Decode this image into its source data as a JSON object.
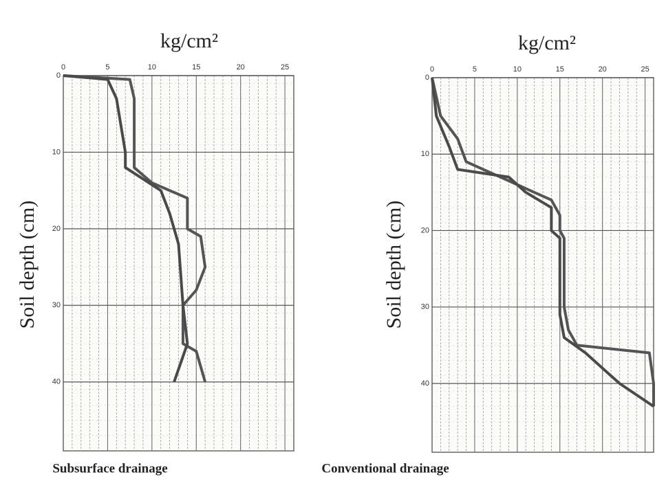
{
  "chart_data": [
    {
      "type": "line",
      "title": "kg/cm²",
      "y_label": "Soil depth (cm)",
      "caption": "Subsurface drainage",
      "xlim": [
        0,
        26
      ],
      "ylim": [
        0,
        49
      ],
      "y_inverted": true,
      "xticks": [
        0,
        5,
        10,
        15,
        20,
        25
      ],
      "yticks": [
        0,
        10,
        20,
        30,
        40
      ],
      "grid": true,
      "series": [
        {
          "color": "#555555",
          "x": [
            0,
            7.5,
            8,
            8,
            10,
            14,
            14,
            15.5,
            16,
            15,
            13.5,
            13.5,
            15,
            16
          ],
          "y": [
            0,
            0.5,
            3,
            12,
            14,
            16,
            20,
            21,
            25,
            28,
            30,
            35,
            36,
            40
          ]
        },
        {
          "color": "#4a4a4a",
          "x": [
            0,
            5,
            6,
            7,
            7,
            11,
            12,
            13,
            13.5,
            14,
            12.5
          ],
          "y": [
            0,
            0.5,
            3,
            10,
            12,
            15,
            18,
            22,
            30,
            35,
            40
          ]
        }
      ]
    },
    {
      "type": "line",
      "title": "kg/cm²",
      "y_label": "Soil depth (cm)",
      "caption": "Conventional drainage",
      "xlim": [
        0,
        26
      ],
      "ylim": [
        0,
        49
      ],
      "y_inverted": true,
      "xticks": [
        0,
        5,
        10,
        15,
        20,
        25
      ],
      "yticks": [
        0,
        10,
        20,
        30,
        40
      ],
      "grid": true,
      "series": [
        {
          "color": "#555555",
          "x": [
            0,
            1,
            3,
            4,
            8,
            10,
            14,
            15,
            15,
            15.5,
            15.5,
            16,
            17,
            25.5,
            26,
            26
          ],
          "y": [
            0,
            5,
            8,
            11,
            13,
            14,
            16,
            18,
            20,
            21,
            30,
            33,
            35,
            36,
            40,
            43
          ]
        },
        {
          "color": "#4a4a4a",
          "x": [
            0,
            0.5,
            2,
            3,
            9,
            11,
            14,
            14,
            15,
            15,
            15.5,
            18,
            22,
            26
          ],
          "y": [
            0,
            5,
            9,
            12,
            13,
            15,
            17,
            20,
            21,
            31,
            34,
            36,
            40,
            43
          ]
        }
      ]
    }
  ]
}
